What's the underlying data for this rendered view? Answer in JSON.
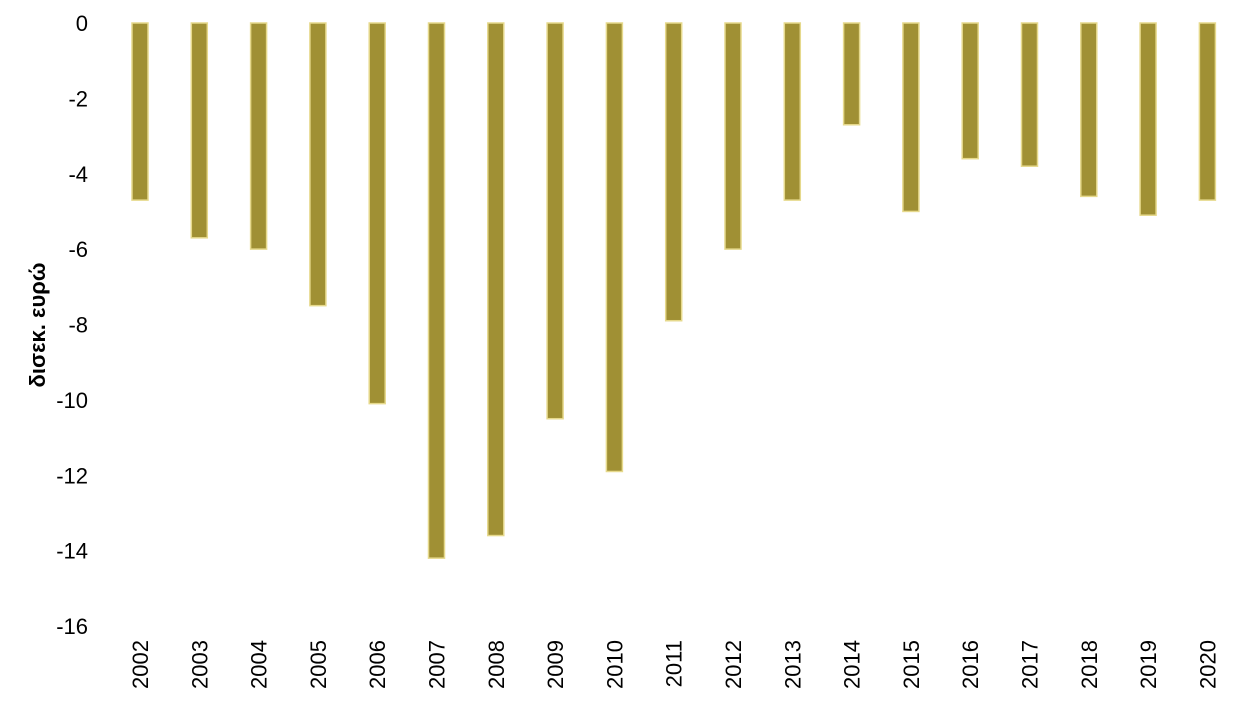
{
  "chart_data": {
    "type": "bar",
    "title": "",
    "xlabel": "",
    "ylabel": "δισεκ. ευρώ",
    "ylim": [
      -16,
      0
    ],
    "yticks": [
      0,
      -2,
      -4,
      -6,
      -8,
      -10,
      -12,
      -14,
      -16
    ],
    "ytick_labels": [
      "0",
      "-2",
      "-4",
      "-6",
      "-8",
      "-10",
      "-12",
      "-14",
      "-16"
    ],
    "grid": false,
    "legend": "none",
    "bar_color": "#A09034",
    "bar_edge_color": "#E6D98C",
    "categories": [
      "2002",
      "2003",
      "2004",
      "2005",
      "2006",
      "2007",
      "2008",
      "2009",
      "2010",
      "2011",
      "2012",
      "2013",
      "2014",
      "2015",
      "2016",
      "2017",
      "2018",
      "2019",
      "2020"
    ],
    "values": [
      -4.7,
      -5.7,
      -6.0,
      -7.5,
      -10.1,
      -14.2,
      -13.6,
      -10.5,
      -11.9,
      -7.9,
      -6.0,
      -4.7,
      -2.7,
      -5.0,
      -3.6,
      -3.8,
      -4.6,
      -5.1,
      -4.7
    ]
  }
}
